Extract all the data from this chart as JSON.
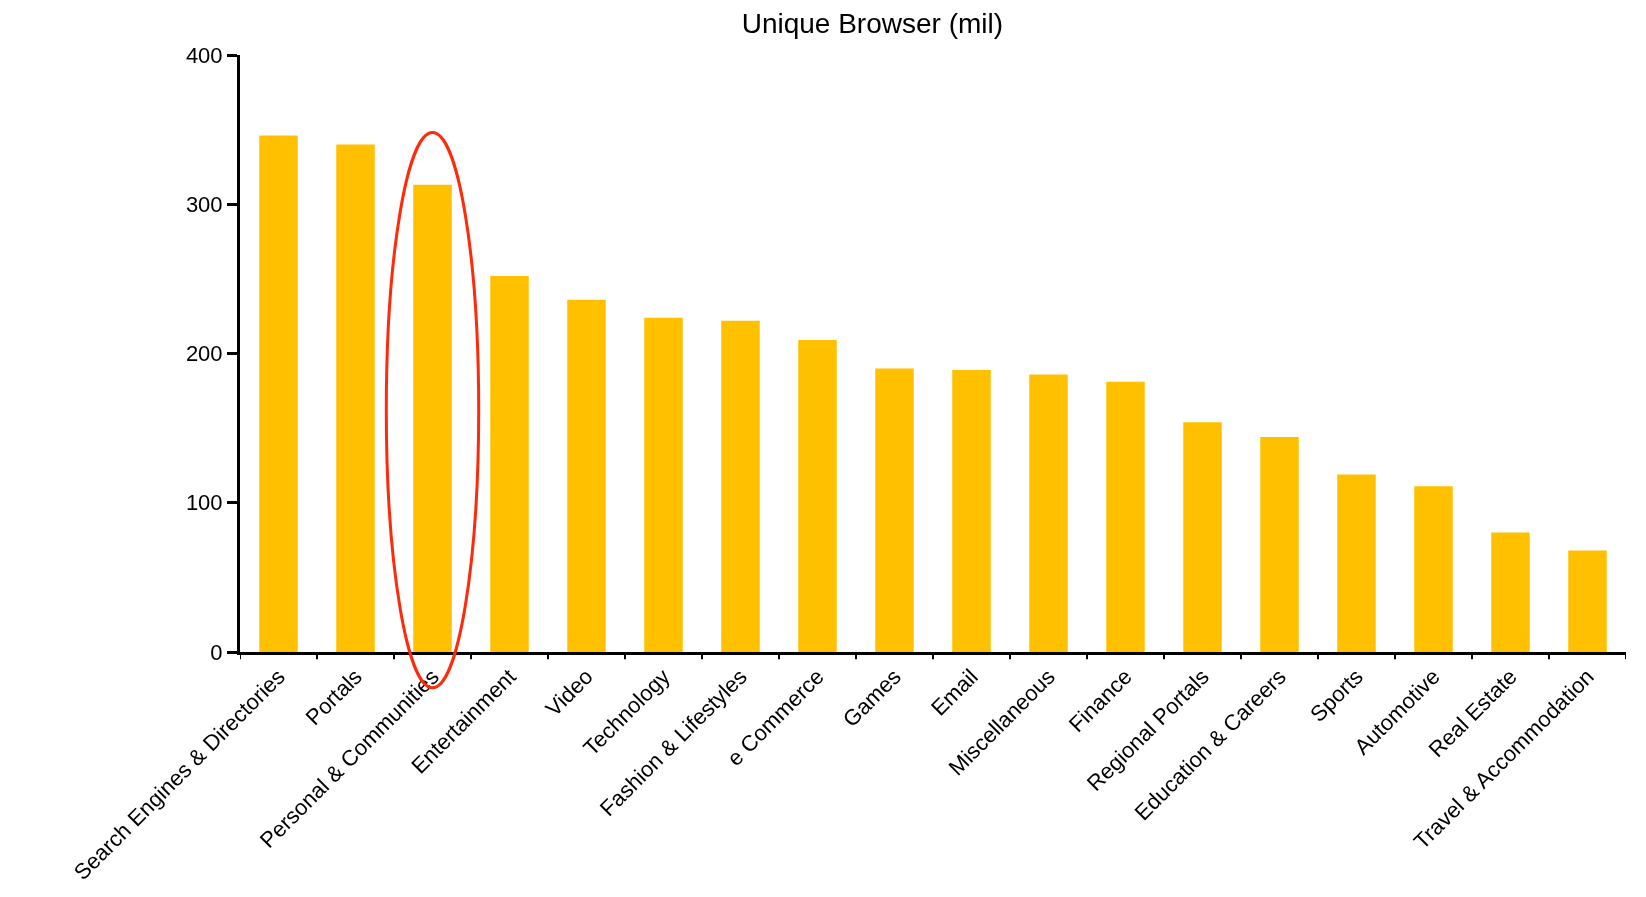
{
  "chart_data": {
    "type": "bar",
    "title": "Unique Browser (mil)",
    "categories": [
      "Search Engines & Directories",
      "Portals",
      "Personal & Communities",
      "Entertainment",
      "Video",
      "Technology",
      "Fashion & Lifestyles",
      "e Commerce",
      "Games",
      "Email",
      "Miscellaneous",
      "Finance",
      "Regional Portals",
      "Education & Careers",
      "Sports",
      "Automotive",
      "Real Estate",
      "Travel & Accommodation"
    ],
    "values": [
      346,
      340,
      313,
      252,
      236,
      224,
      222,
      209,
      190,
      189,
      186,
      181,
      154,
      144,
      119,
      111,
      80,
      68
    ],
    "color": "#ffc000",
    "ylim": [
      0,
      400
    ],
    "yticks": [
      0,
      100,
      200,
      300,
      400
    ]
  }
}
